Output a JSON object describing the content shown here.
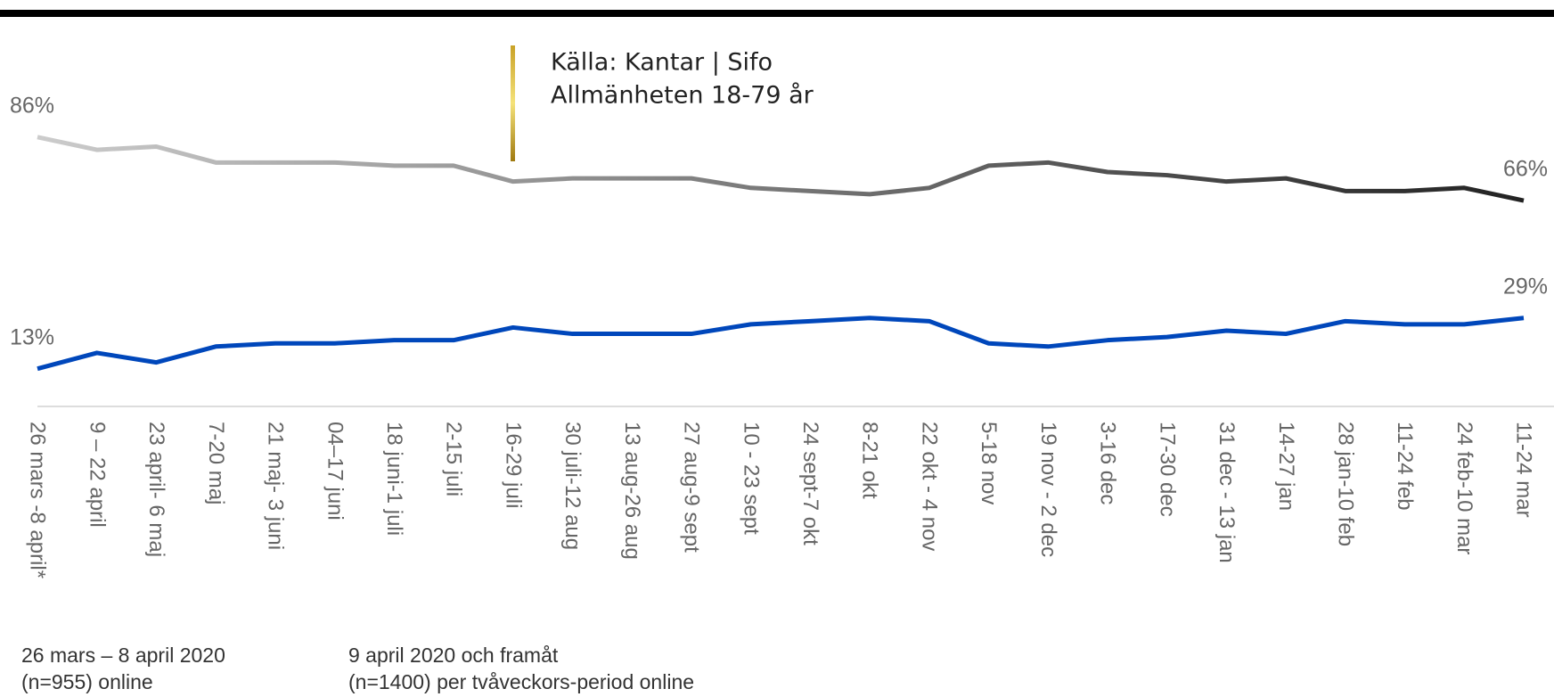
{
  "chart_data": {
    "type": "line",
    "annotations": [
      "Källa: Kantar | Sifo",
      "Allmänheten 18-79 år"
    ],
    "footnotes": [
      [
        "26 mars – 8 april 2020",
        "(n=955) online"
      ],
      [
        "9 april 2020 och framåt",
        "(n=1400) per tvåveckors-period online"
      ]
    ],
    "categories": [
      "26 mars -8 april*",
      "9 – 22 april",
      "23 april- 6 maj",
      "7-20 maj",
      "21 maj- 3 juni",
      "04–17 juni",
      "18 juni-1 juli",
      "2-15 juli",
      "16-29 juli",
      "30 juli-12 aug",
      "13 aug-26 aug",
      "27 aug-9 sept",
      "10 - 23 sept",
      "24 sept-7 okt",
      "8-21 okt",
      "22 okt - 4 nov",
      "5-18 nov",
      "19 nov - 2 dec",
      "3-16 dec",
      "17-30 dec",
      "31 dec - 13 jan",
      "14-27 jan",
      "28 jan-10 feb",
      "11-24 feb",
      "24 feb-10 mar",
      "11-24 mar"
    ],
    "series": [
      {
        "color": "#222222",
        "gradient_start": "#cccccc",
        "values": [
          86,
          82,
          83,
          78,
          78,
          78,
          77,
          77,
          72,
          73,
          73,
          73,
          70,
          69,
          68,
          70,
          77,
          78,
          75,
          74,
          72,
          73,
          69,
          69,
          70,
          66
        ],
        "value_labels": [
          "86%",
          null,
          null,
          null,
          null,
          null,
          null,
          null,
          null,
          null,
          null,
          null,
          null,
          null,
          null,
          null,
          null,
          null,
          null,
          null,
          null,
          null,
          null,
          null,
          null,
          "66%"
        ]
      },
      {
        "color": "#0047bb",
        "values": [
          13,
          18,
          15,
          20,
          21,
          21,
          22,
          22,
          26,
          24,
          24,
          24,
          27,
          28,
          29,
          28,
          21,
          20,
          22,
          23,
          25,
          24,
          28,
          27,
          27,
          29
        ],
        "value_labels": [
          "13%",
          null,
          null,
          null,
          null,
          null,
          null,
          null,
          null,
          null,
          null,
          null,
          null,
          null,
          null,
          null,
          null,
          null,
          null,
          null,
          null,
          null,
          null,
          null,
          null,
          "29%"
        ]
      }
    ],
    "ylim": [
      0,
      100
    ]
  }
}
